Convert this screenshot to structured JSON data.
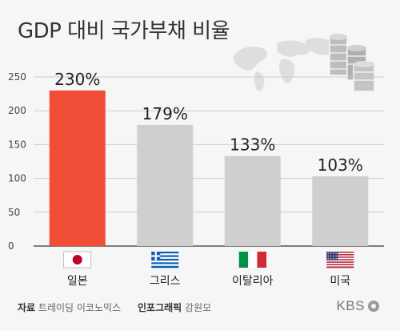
{
  "title": "GDP 대비 국가부채 비율",
  "chart_data": {
    "type": "bar",
    "categories": [
      "일본",
      "그리스",
      "이탈리아",
      "미국"
    ],
    "values": [
      230,
      179,
      133,
      103
    ],
    "value_labels": [
      "230%",
      "179%",
      "133%",
      "103%"
    ],
    "ylim": [
      0,
      250
    ],
    "yticks": [
      0,
      50,
      100,
      150,
      200,
      250
    ],
    "grid": true,
    "bar_colors": [
      "#f04e37",
      "#cfcfcf",
      "#cfcfcf",
      "#cfcfcf"
    ],
    "flags": [
      "japan-flag",
      "greece-flag",
      "italy-flag",
      "usa-flag"
    ]
  },
  "footer": {
    "source_label": "자료",
    "source_text": "트레이딩 이코노믹스",
    "credit_label": "인포그래픽",
    "credit_text": "강원모"
  },
  "logo": {
    "text": "KBS"
  }
}
